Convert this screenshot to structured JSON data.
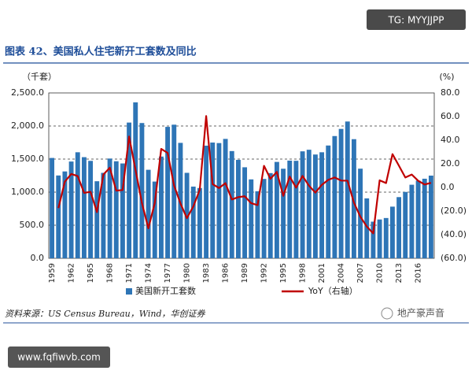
{
  "header": {
    "badge": "TG: MYYJJPP"
  },
  "chart_data": {
    "type": "bar",
    "title": "图表 42、美国私人住宅新开工套数及同比",
    "y_label": "（千套）",
    "y2_label": "(%)",
    "source": "资料来源：US Census Bureau，Wind，华创证券",
    "categories": [
      "1959",
      null,
      null,
      "1962",
      null,
      null,
      "1965",
      null,
      null,
      "1968",
      null,
      null,
      "1971",
      null,
      null,
      "1974",
      null,
      null,
      "1977",
      null,
      null,
      "1980",
      null,
      null,
      "1983",
      null,
      null,
      "1986",
      null,
      null,
      "1989",
      null,
      null,
      "1992",
      null,
      null,
      "1995",
      null,
      null,
      "1998",
      null,
      null,
      "2001",
      null,
      null,
      "2004",
      null,
      null,
      "2007",
      null,
      null,
      "2010",
      null,
      null,
      "2013",
      null,
      null,
      "2016",
      null,
      null
    ],
    "series": [
      {
        "name": "美国新开工套数",
        "type": "bar",
        "color": "#2e75b6",
        "values": [
          1517,
          1252,
          1313,
          1463,
          1603,
          1529,
          1473,
          1165,
          1292,
          1508,
          1467,
          1434,
          2052,
          2357,
          2045,
          1338,
          1160,
          1538,
          1987,
          2020,
          1745,
          1292,
          1084,
          1062,
          1703,
          1750,
          1742,
          1805,
          1621,
          1488,
          1376,
          1193,
          1014,
          1200,
          1288,
          1457,
          1354,
          1477,
          1474,
          1617,
          1641,
          1569,
          1603,
          1705,
          1848,
          1956,
          2068,
          1801,
          1355,
          906,
          554,
          587,
          609,
          781,
          925,
          1003,
          1112,
          1174,
          1203,
          1250
        ]
      },
      {
        "name": "YoY（右轴）",
        "type": "line",
        "color": "#c00000",
        "axis": "y2",
        "values": [
          null,
          -17.5,
          4.9,
          11.4,
          9.6,
          -4.6,
          -3.7,
          -20.9,
          10.9,
          16.7,
          -2.7,
          -2.2,
          43.1,
          14.9,
          -13.2,
          -34.6,
          -13.3,
          32.6,
          29.2,
          1.7,
          -13.6,
          -26.0,
          -16.1,
          -2.0,
          60.4,
          2.8,
          -0.5,
          3.6,
          -10.2,
          -8.2,
          -7.5,
          -13.3,
          -15.0,
          18.3,
          7.3,
          13.1,
          -7.1,
          9.1,
          -0.2,
          9.7,
          1.5,
          -4.4,
          2.2,
          6.4,
          8.4,
          5.8,
          5.7,
          -12.9,
          -24.8,
          -33.1,
          -38.9,
          6.0,
          3.7,
          28.2,
          18.4,
          8.4,
          10.9,
          5.6,
          2.5,
          3.9
        ]
      }
    ],
    "ylim": [
      0,
      2500
    ],
    "yticks": [
      {
        "value": 0,
        "label": "0.0"
      },
      {
        "value": 500,
        "label": "500.0"
      },
      {
        "value": 1000,
        "label": "1,000.0"
      },
      {
        "value": 1500,
        "label": "1,500.0"
      },
      {
        "value": 2000,
        "label": "2,000.0"
      },
      {
        "value": 2500,
        "label": "2,500.0"
      }
    ],
    "y2lim": [
      -60,
      80
    ],
    "y2ticks": [
      {
        "value": -60,
        "label": "(60.0)"
      },
      {
        "value": -40,
        "label": "(40.0)"
      },
      {
        "value": -20,
        "label": "(20.0)"
      },
      {
        "value": 0,
        "label": "0.0"
      },
      {
        "value": 20,
        "label": "20.0"
      },
      {
        "value": 40,
        "label": "40.0"
      },
      {
        "value": 60,
        "label": "60.0"
      },
      {
        "value": 80,
        "label": "80.0"
      }
    ],
    "grid": true
  },
  "footer": {
    "watermark": "地产豪声音",
    "url": "www.fqfiwvb.com"
  }
}
